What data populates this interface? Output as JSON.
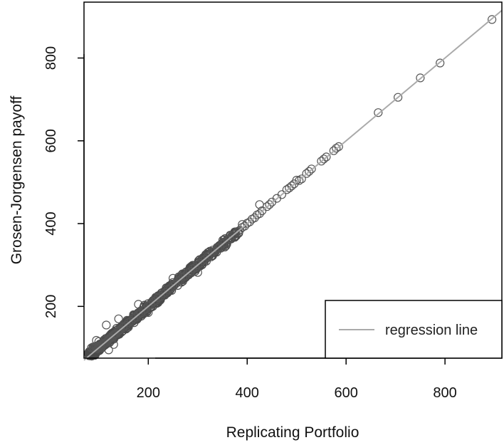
{
  "chart_data": {
    "type": "scatter",
    "xlabel": "Replicating Portfolio",
    "ylabel": "Grosen-Jorgensen payoff",
    "xlim": [
      70,
      915
    ],
    "ylim": [
      75,
      935
    ],
    "x_ticks": [
      200,
      400,
      600,
      800
    ],
    "y_ticks": [
      200,
      400,
      600,
      800
    ],
    "x_tick_labels": [
      "200",
      "400",
      "600",
      "800"
    ],
    "y_tick_labels": [
      "200",
      "400",
      "600",
      "800"
    ],
    "grid": false,
    "legend": {
      "position": "bottom-right",
      "entries": [
        "regression line"
      ]
    },
    "colors": {
      "points": "#555555",
      "dense_points": "#4a4a4a",
      "regression_line": "#aaaaaa",
      "frame": "#000000"
    },
    "regression_line": {
      "intercept": 0,
      "slope": 1
    },
    "series": [
      {
        "marker": "open-circle",
        "x": [
          85,
          88,
          90,
          92,
          95,
          96,
          98,
          100,
          102,
          104,
          105,
          108,
          110,
          112,
          115,
          118,
          120,
          122,
          125,
          128,
          130,
          132,
          135,
          138,
          140,
          142,
          145,
          148,
          150,
          155,
          160,
          165,
          170,
          175,
          180,
          185,
          190,
          195,
          200,
          205,
          210,
          215,
          220,
          225,
          230,
          235,
          240,
          245,
          250,
          255,
          260,
          265,
          270,
          275,
          280,
          285,
          290,
          295,
          300,
          305,
          310,
          315,
          320,
          325,
          330,
          335,
          340,
          345,
          350,
          355,
          360,
          365,
          370,
          375,
          380,
          385,
          390,
          395,
          400,
          405,
          410,
          415,
          420,
          425,
          430,
          440,
          445,
          450,
          460,
          470,
          480,
          485,
          490,
          495,
          500,
          505,
          510,
          520,
          525,
          530,
          550,
          555,
          560,
          575,
          580,
          585,
          115,
          140,
          160,
          180,
          200,
          250,
          300,
          120,
          130,
          110,
          425,
          100,
          95,
          170,
          215,
          265,
          330,
          390,
          665,
          705,
          750,
          790,
          895
        ],
        "y": [
          100,
          102,
          99,
          103,
          101,
          104,
          98,
          102,
          105,
          100,
          103,
          107,
          109,
          112,
          114,
          117,
          121,
          123,
          124,
          126,
          131,
          133,
          134,
          139,
          141,
          143,
          144,
          149,
          151,
          154,
          161,
          164,
          171,
          174,
          181,
          184,
          191,
          194,
          201,
          204,
          211,
          214,
          221,
          224,
          231,
          234,
          241,
          244,
          251,
          254,
          261,
          264,
          271,
          274,
          281,
          284,
          291,
          294,
          301,
          304,
          311,
          314,
          321,
          324,
          331,
          334,
          341,
          344,
          351,
          354,
          361,
          364,
          371,
          374,
          381,
          384,
          391,
          394,
          401,
          404,
          411,
          414,
          421,
          424,
          431,
          441,
          446,
          452,
          461,
          470,
          482,
          486,
          491,
          496,
          505,
          504,
          508,
          521,
          526,
          532,
          551,
          556,
          561,
          576,
          582,
          586,
          155,
          170,
          150,
          205,
          185,
          268,
          282,
          95,
          108,
          118,
          446,
          115,
          118,
          180,
          222,
          272,
          336,
          398,
          668,
          705,
          752,
          788,
          893
        ]
      }
    ]
  }
}
